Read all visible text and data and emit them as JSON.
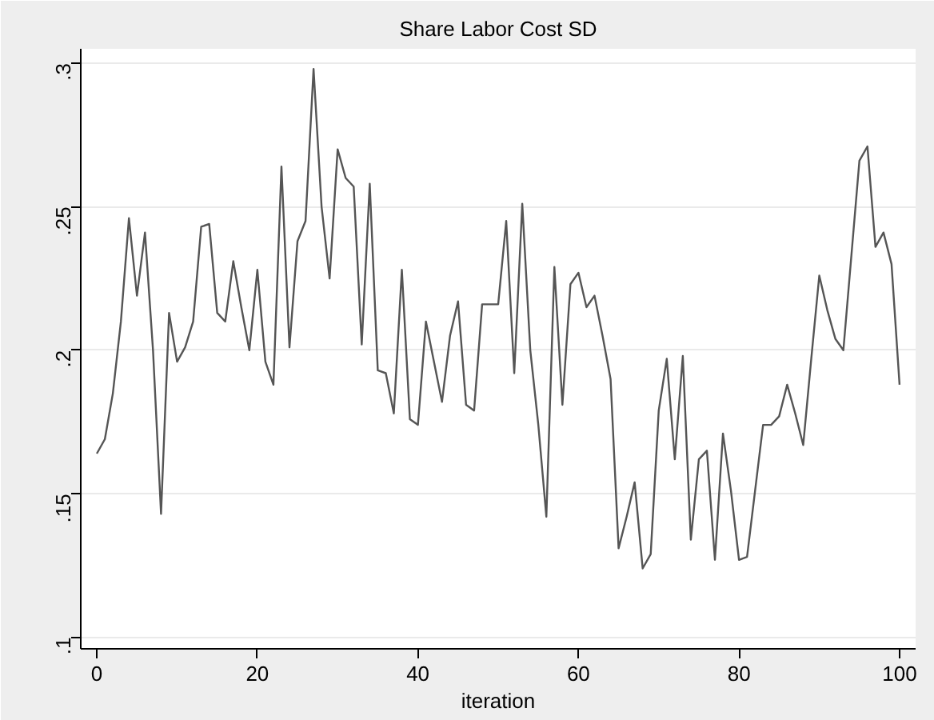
{
  "chart_data": {
    "type": "line",
    "title": "Share Labor Cost SD",
    "xlabel": "iteration",
    "x": [
      0,
      1,
      2,
      3,
      4,
      5,
      6,
      7,
      8,
      9,
      10,
      11,
      12,
      13,
      14,
      15,
      16,
      17,
      18,
      19,
      20,
      21,
      22,
      23,
      24,
      25,
      26,
      27,
      28,
      29,
      30,
      31,
      32,
      33,
      34,
      35,
      36,
      37,
      38,
      39,
      40,
      41,
      42,
      43,
      44,
      45,
      46,
      47,
      48,
      49,
      50,
      51,
      52,
      53,
      54,
      55,
      56,
      57,
      58,
      59,
      60,
      61,
      62,
      63,
      64,
      65,
      66,
      67,
      68,
      69,
      70,
      71,
      72,
      73,
      74,
      75,
      76,
      77,
      78,
      79,
      80,
      81,
      82,
      83,
      84,
      85,
      86,
      87,
      88,
      89,
      90,
      91,
      92,
      93,
      94,
      95,
      96,
      97,
      98,
      99,
      100
    ],
    "series": [
      {
        "color": "#555555",
        "values": [
          0.164,
          0.169,
          0.185,
          0.21,
          0.246,
          0.219,
          0.241,
          0.2,
          0.143,
          0.213,
          0.196,
          0.201,
          0.21,
          0.243,
          0.244,
          0.213,
          0.21,
          0.231,
          0.215,
          0.2,
          0.228,
          0.196,
          0.188,
          0.264,
          0.201,
          0.238,
          0.245,
          0.298,
          0.25,
          0.225,
          0.27,
          0.26,
          0.257,
          0.202,
          0.258,
          0.193,
          0.192,
          0.178,
          0.228,
          0.176,
          0.174,
          0.21,
          0.196,
          0.182,
          0.205,
          0.217,
          0.181,
          0.179,
          0.216,
          0.216,
          0.216,
          0.245,
          0.192,
          0.251,
          0.2,
          0.174,
          0.142,
          0.229,
          0.181,
          0.223,
          0.227,
          0.215,
          0.219,
          0.205,
          0.19,
          0.131,
          0.142,
          0.154,
          0.124,
          0.129,
          0.179,
          0.197,
          0.162,
          0.198,
          0.134,
          0.162,
          0.165,
          0.127,
          0.171,
          0.151,
          0.127,
          0.128,
          0.151,
          0.174,
          0.174,
          0.177,
          0.188,
          0.178,
          0.167,
          0.197,
          0.226,
          0.214,
          0.204,
          0.2,
          0.233,
          0.266,
          0.271,
          0.236,
          0.241,
          0.23,
          0.188
        ]
      }
    ],
    "xlim": [
      -2,
      102
    ],
    "ylim": [
      0.096,
      0.305
    ],
    "xticks": [
      0,
      20,
      40,
      60,
      80,
      100
    ],
    "yticks": [
      {
        "value": 0.1,
        "label": ".1"
      },
      {
        "value": 0.15,
        "label": ".15"
      },
      {
        "value": 0.2,
        "label": ".2"
      },
      {
        "value": 0.25,
        "label": ".25"
      },
      {
        "value": 0.3,
        "label": ".3"
      }
    ],
    "grid": "y",
    "marker": "none",
    "line_style": "solid"
  }
}
